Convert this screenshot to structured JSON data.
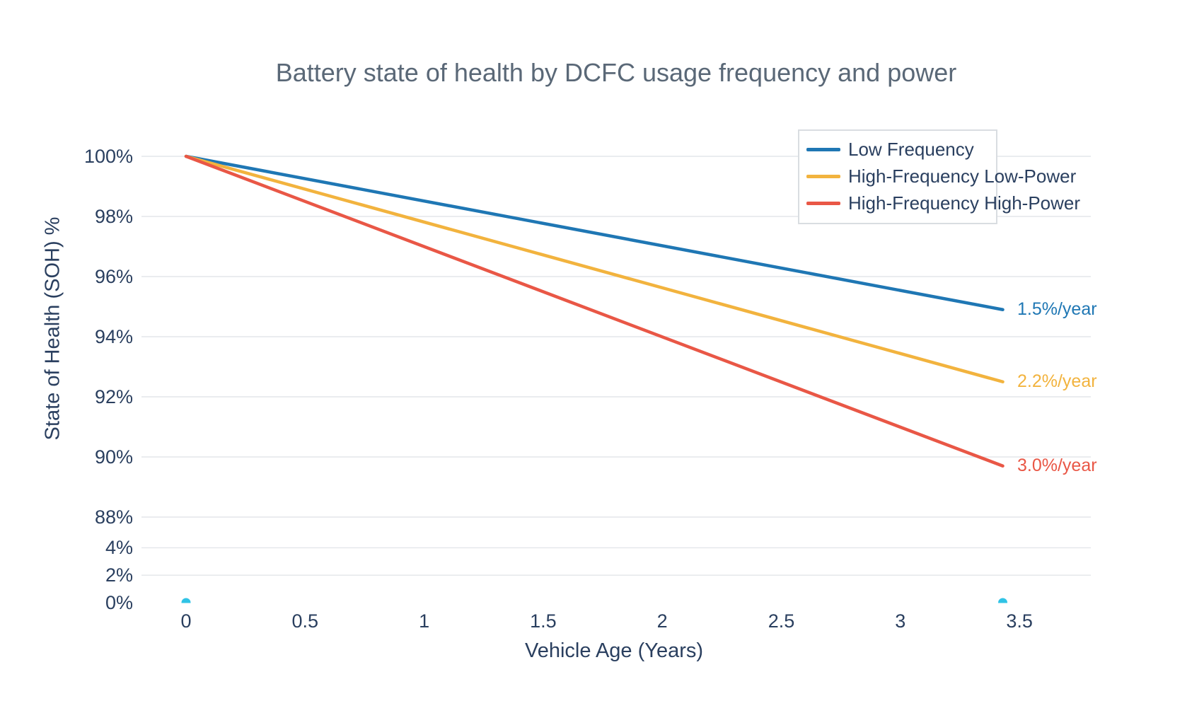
{
  "title": "Battery state of health by DCFC usage frequency and power",
  "chart_data": {
    "type": "line",
    "title": "Battery state of health by DCFC usage frequency and power",
    "xlabel": "Vehicle Age (Years)",
    "ylabel": "State of Health (SOH) %",
    "x_ticks": [
      {
        "label": "0",
        "value": 0
      },
      {
        "label": "0.5",
        "value": 0.5
      },
      {
        "label": "1",
        "value": 1
      },
      {
        "label": "1.5",
        "value": 1.5
      },
      {
        "label": "2",
        "value": 2
      },
      {
        "label": "2.5",
        "value": 2.5
      },
      {
        "label": "3",
        "value": 3
      },
      {
        "label": "3.5",
        "value": 3.5
      }
    ],
    "y_ticks": [
      {
        "label": "100%",
        "value": 100,
        "gridline": true
      },
      {
        "label": "98%",
        "value": 98,
        "gridline": true
      },
      {
        "label": "96%",
        "value": 96,
        "gridline": true
      },
      {
        "label": "94%",
        "value": 94,
        "gridline": true
      },
      {
        "label": "92%",
        "value": 92,
        "gridline": true
      },
      {
        "label": "90%",
        "value": 90,
        "gridline": true
      },
      {
        "label": "88%",
        "value": 88,
        "gridline": true
      },
      {
        "label": "4%",
        "value": 4,
        "gridline": true
      },
      {
        "label": "2%",
        "value": 2,
        "gridline": true
      },
      {
        "label": "0%",
        "value": 0,
        "gridline": false
      }
    ],
    "y_axis_note": "broken y-axis: 88%-100% region expanded, 0%-4% region compressed at bottom",
    "x_range_years": [
      0,
      3.43
    ],
    "grid": true,
    "legend_position": "top-right-inside",
    "series": [
      {
        "name": "Low Frequency",
        "color": "#1f77b4",
        "degradation_rate_pct_per_year": 1.5,
        "annotation": "1.5%/year",
        "x": [
          0,
          3.43
        ],
        "y": [
          100,
          94.9
        ]
      },
      {
        "name": "High-Frequency Low-Power",
        "color": "#f2b33e",
        "degradation_rate_pct_per_year": 2.2,
        "annotation": "2.2%/year",
        "x": [
          0,
          3.43
        ],
        "y": [
          100,
          92.5
        ]
      },
      {
        "name": "High-Frequency High-Power",
        "color": "#e95746",
        "degradation_rate_pct_per_year": 3.0,
        "annotation": "3.0%/year",
        "x": [
          0,
          3.43
        ],
        "y": [
          100,
          89.7
        ]
      }
    ],
    "endpoint_markers": {
      "color": "#30c3e6",
      "points": [
        {
          "x": 0,
          "y": 0
        },
        {
          "x": 3.43,
          "y": 0
        }
      ]
    }
  },
  "colors": {
    "title_text": "#5a6877",
    "axis_text": "#2a3f5f",
    "gridline": "#e3e6ea",
    "legend_border": "#d9dde1",
    "background": "#ffffff"
  }
}
